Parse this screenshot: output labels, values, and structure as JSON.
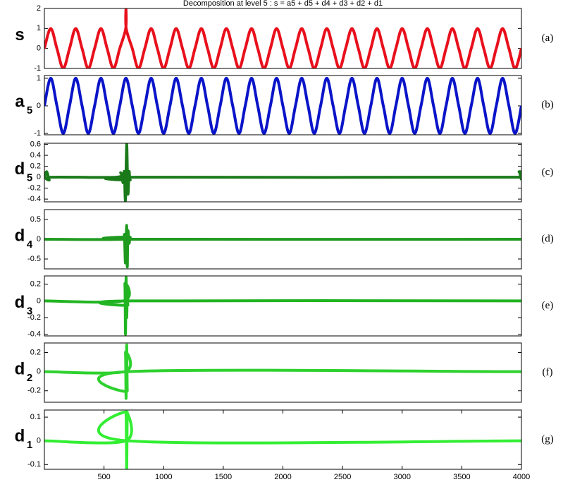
{
  "chart_data": [
    {
      "type": "line",
      "title": "Decomposition at level 5 : s = a5 + d5 + d4 + d3 + d2 + d1",
      "ylabel": [
        "s"
      ],
      "tag": "(a)",
      "color": "#e8101c",
      "xlim": [
        0,
        4000
      ],
      "ylim": [
        -1,
        2
      ],
      "yticks": [
        -1,
        0,
        1,
        2
      ],
      "x": [
        0,
        53,
        105,
        158,
        211,
        263,
        316,
        368,
        421,
        474,
        526,
        579,
        632,
        682,
        684,
        686,
        737,
        789,
        842,
        895,
        947,
        1000,
        1053,
        1105,
        1158,
        1211,
        1263,
        1316,
        1368,
        1421,
        1474,
        1526,
        1579,
        1632,
        1684,
        1737,
        1789,
        1842,
        1895,
        1947,
        2000,
        2053,
        2105,
        2158,
        2211,
        2263,
        2316,
        2368,
        2421,
        2474,
        2526,
        2579,
        2632,
        2684,
        2737,
        2789,
        2842,
        2895,
        2947,
        3000,
        3053,
        3105,
        3158,
        3211,
        3263,
        3316,
        3368,
        3421,
        3474,
        3526,
        3579,
        3632,
        3684,
        3737,
        3789,
        3842,
        3895,
        3947,
        4000
      ],
      "values": [
        0,
        1,
        0,
        -1,
        0,
        1,
        0,
        -1,
        0,
        1,
        0,
        -1,
        0,
        1,
        2,
        1,
        0,
        -1,
        0,
        1,
        0,
        -1,
        0,
        1,
        0,
        -1,
        0,
        1,
        0,
        -1,
        0,
        1,
        0,
        -1,
        0,
        1,
        0,
        -1,
        0,
        1,
        0,
        -1,
        0,
        1,
        0,
        -1,
        0,
        1,
        0,
        -1,
        0,
        1,
        0,
        -1,
        0,
        1,
        0,
        -1,
        0,
        1,
        0,
        -1,
        0,
        1,
        0,
        -1,
        0,
        1,
        0,
        -1,
        0,
        1,
        0,
        -1,
        0,
        1,
        0,
        -1,
        0
      ]
    },
    {
      "type": "line",
      "ylabel": [
        "a",
        "5"
      ],
      "tag": "(b)",
      "color": "#0a14c8",
      "xlim": [
        0,
        4000
      ],
      "ylim": [
        -1.05,
        1.1
      ],
      "yticks": [
        -1,
        0,
        1
      ],
      "x": [
        0,
        53,
        105,
        158,
        211,
        263,
        316,
        368,
        421,
        474,
        526,
        579,
        632,
        684,
        737,
        789,
        842,
        895,
        947,
        1000,
        1053,
        1105,
        1158,
        1211,
        1263,
        1316,
        1368,
        1421,
        1474,
        1526,
        1579,
        1632,
        1684,
        1737,
        1789,
        1842,
        1895,
        1947,
        2000,
        2053,
        2105,
        2158,
        2211,
        2263,
        2316,
        2368,
        2421,
        2474,
        2526,
        2579,
        2632,
        2684,
        2737,
        2789,
        2842,
        2895,
        2947,
        3000,
        3053,
        3105,
        3158,
        3211,
        3263,
        3316,
        3368,
        3421,
        3474,
        3526,
        3579,
        3632,
        3684,
        3737,
        3789,
        3842,
        3895,
        3947,
        4000
      ],
      "values": [
        0,
        1,
        0,
        -1,
        0,
        1,
        0,
        -1,
        0,
        1,
        0,
        -1,
        0,
        1,
        0,
        -1,
        0,
        1,
        0,
        -1,
        0,
        1,
        0,
        -1,
        0,
        1,
        0,
        -1,
        0,
        1,
        0,
        -1,
        0,
        1,
        0,
        -1,
        0,
        1,
        0,
        -1,
        0,
        1,
        0,
        -1,
        0,
        1,
        0,
        -1,
        0,
        1,
        0,
        -1,
        0,
        1,
        0,
        -1,
        0,
        1,
        0,
        -1,
        0,
        1,
        0,
        -1,
        0,
        1,
        0,
        -1,
        0,
        1,
        0,
        -1,
        0,
        1,
        0,
        -1,
        0
      ]
    },
    {
      "type": "line",
      "ylabel": [
        "d",
        "5"
      ],
      "tag": "(c)",
      "color": "#1a7a1a",
      "xlim": [
        0,
        4000
      ],
      "ylim": [
        -0.45,
        0.62
      ],
      "yticks": [
        -0.4,
        -0.2,
        0,
        0.2,
        0.4,
        0.6
      ],
      "x": [
        0,
        20,
        40,
        60,
        600,
        640,
        660,
        670,
        680,
        690,
        700,
        710,
        720,
        760,
        3960,
        3980,
        4000
      ],
      "values": [
        0,
        0.1,
        -0.05,
        0,
        0,
        0.08,
        -0.1,
        0.1,
        -0.42,
        0.6,
        -0.3,
        0.1,
        -0.05,
        0,
        0,
        0.1,
        -0.05
      ]
    },
    {
      "type": "line",
      "ylabel": [
        "d",
        "4"
      ],
      "tag": "(d)",
      "color": "#1f9a1f",
      "xlim": [
        0,
        4000
      ],
      "ylim": [
        -0.75,
        0.75
      ],
      "yticks": [
        -0.5,
        0,
        0.5
      ],
      "x": [
        0,
        650,
        670,
        680,
        690,
        695,
        700,
        710,
        720,
        740,
        4000
      ],
      "values": [
        0,
        0,
        0.1,
        -0.6,
        0.35,
        -0.7,
        0.2,
        -0.1,
        0.05,
        0,
        0
      ]
    },
    {
      "type": "line",
      "ylabel": [
        "d",
        "3"
      ],
      "tag": "(e)",
      "color": "#22b422",
      "xlim": [
        0,
        4000
      ],
      "ylim": [
        -0.42,
        0.3
      ],
      "yticks": [
        -0.4,
        -0.2,
        0,
        0.2
      ],
      "x": [
        0,
        660,
        675,
        680,
        685,
        690,
        695,
        700,
        710,
        4000
      ],
      "values": [
        0,
        0,
        0.2,
        -0.4,
        0.28,
        -0.2,
        0.1,
        -0.05,
        0,
        0
      ]
    },
    {
      "type": "line",
      "ylabel": [
        "d",
        "2"
      ],
      "tag": "(f)",
      "color": "#2ed12e",
      "xlim": [
        0,
        4000
      ],
      "ylim": [
        -0.32,
        0.3
      ],
      "yticks": [
        -0.2,
        0,
        0.2
      ],
      "x": [
        0,
        670,
        680,
        685,
        690,
        695,
        700,
        4000
      ],
      "values": [
        0,
        0,
        0.2,
        -0.28,
        0.28,
        -0.2,
        0,
        0
      ]
    },
    {
      "type": "line",
      "ylabel": [
        "d",
        "1"
      ],
      "tag": "(g)",
      "color": "#33ee33",
      "xlim": [
        0,
        4000
      ],
      "ylim": [
        -0.12,
        0.13
      ],
      "yticks": [
        -0.1,
        0,
        0.1
      ],
      "x": [
        0,
        680,
        685,
        690,
        695,
        700,
        4000
      ],
      "values": [
        0,
        0,
        0.12,
        -0.12,
        0.12,
        0,
        0
      ],
      "xticks": [
        500,
        1000,
        1500,
        2000,
        2500,
        3000,
        3500,
        4000
      ]
    }
  ]
}
